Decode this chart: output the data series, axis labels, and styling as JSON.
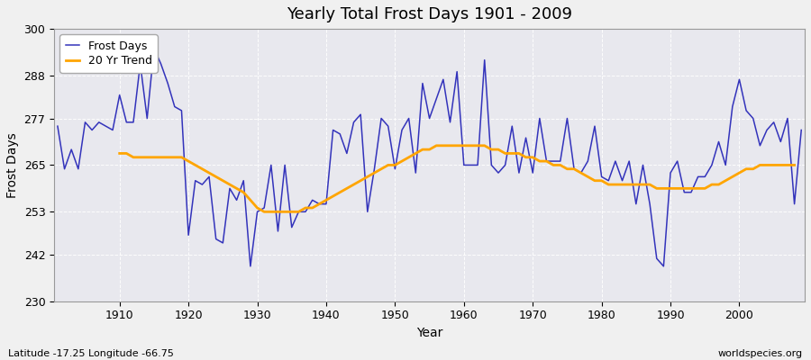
{
  "title": "Yearly Total Frost Days 1901 - 2009",
  "xlabel": "Year",
  "ylabel": "Frost Days",
  "footnote_left": "Latitude -17.25 Longitude -66.75",
  "footnote_right": "worldspecies.org",
  "legend_frost": "Frost Days",
  "legend_trend": "20 Yr Trend",
  "frost_color": "#3333bb",
  "trend_color": "#FFA500",
  "bg_color": "#f0f0f0",
  "plot_bg_color": "#e8e8ee",
  "ylim": [
    230,
    300
  ],
  "yticks": [
    230,
    242,
    253,
    265,
    277,
    288,
    300
  ],
  "years": [
    1901,
    1902,
    1903,
    1904,
    1905,
    1906,
    1907,
    1908,
    1909,
    1910,
    1911,
    1912,
    1913,
    1914,
    1915,
    1916,
    1917,
    1918,
    1919,
    1920,
    1921,
    1922,
    1923,
    1924,
    1925,
    1926,
    1927,
    1928,
    1929,
    1930,
    1931,
    1932,
    1933,
    1934,
    1935,
    1936,
    1937,
    1938,
    1939,
    1940,
    1941,
    1942,
    1943,
    1944,
    1945,
    1946,
    1947,
    1948,
    1949,
    1950,
    1951,
    1952,
    1953,
    1954,
    1955,
    1956,
    1957,
    1958,
    1959,
    1960,
    1961,
    1962,
    1963,
    1964,
    1965,
    1966,
    1967,
    1968,
    1969,
    1970,
    1971,
    1972,
    1973,
    1974,
    1975,
    1976,
    1977,
    1978,
    1979,
    1980,
    1981,
    1982,
    1983,
    1984,
    1985,
    1986,
    1987,
    1988,
    1989,
    1990,
    1991,
    1992,
    1993,
    1994,
    1995,
    1996,
    1997,
    1998,
    1999,
    2000,
    2001,
    2002,
    2003,
    2004,
    2005,
    2006,
    2007,
    2008,
    2009
  ],
  "frost_days": [
    275,
    264,
    269,
    264,
    276,
    274,
    276,
    275,
    274,
    283,
    276,
    276,
    291,
    277,
    295,
    291,
    286,
    280,
    279,
    247,
    261,
    260,
    262,
    246,
    245,
    259,
    256,
    261,
    239,
    253,
    254,
    265,
    248,
    265,
    249,
    253,
    253,
    256,
    255,
    255,
    274,
    273,
    268,
    276,
    278,
    253,
    264,
    277,
    275,
    264,
    274,
    277,
    263,
    286,
    277,
    282,
    287,
    276,
    289,
    265,
    265,
    265,
    292,
    265,
    263,
    265,
    275,
    263,
    272,
    263,
    277,
    266,
    266,
    266,
    277,
    264,
    263,
    266,
    275,
    262,
    261,
    266,
    261,
    266,
    255,
    265,
    255,
    241,
    239,
    263,
    266,
    258,
    258,
    262,
    262,
    265,
    271,
    265,
    280,
    287,
    279,
    277,
    270,
    274,
    276,
    271,
    277,
    255,
    274
  ],
  "trend_years": [
    1910,
    1911,
    1912,
    1913,
    1914,
    1915,
    1916,
    1917,
    1918,
    1919,
    1920,
    1921,
    1922,
    1923,
    1924,
    1925,
    1926,
    1927,
    1928,
    1929,
    1930,
    1931,
    1932,
    1933,
    1934,
    1935,
    1936,
    1937,
    1938,
    1939,
    1940,
    1941,
    1942,
    1943,
    1944,
    1945,
    1946,
    1947,
    1948,
    1949,
    1950,
    1951,
    1952,
    1953,
    1954,
    1955,
    1956,
    1957,
    1958,
    1959,
    1960,
    1961,
    1962,
    1963,
    1964,
    1965,
    1966,
    1967,
    1968,
    1969,
    1970,
    1971,
    1972,
    1973,
    1974,
    1975,
    1976,
    1977,
    1978,
    1979,
    1980,
    1981,
    1982,
    1983,
    1984,
    1985,
    1986,
    1987,
    1988,
    1989,
    1990,
    1991,
    1992,
    1993,
    1994,
    1995,
    1996,
    1997,
    1998,
    1999,
    2000,
    2001,
    2002,
    2003,
    2004,
    2005,
    2006,
    2007,
    2008
  ],
  "trend_vals": [
    268,
    268,
    267,
    267,
    267,
    267,
    267,
    267,
    267,
    267,
    266,
    265,
    264,
    263,
    262,
    261,
    260,
    259,
    258,
    256,
    254,
    253,
    253,
    253,
    253,
    253,
    253,
    254,
    254,
    255,
    256,
    257,
    258,
    259,
    260,
    261,
    262,
    263,
    264,
    265,
    265,
    266,
    267,
    268,
    269,
    269,
    270,
    270,
    270,
    270,
    270,
    270,
    270,
    270,
    269,
    269,
    268,
    268,
    268,
    267,
    267,
    266,
    266,
    265,
    265,
    264,
    264,
    263,
    262,
    261,
    261,
    260,
    260,
    260,
    260,
    260,
    260,
    260,
    259,
    259,
    259,
    259,
    259,
    259,
    259,
    259,
    260,
    260,
    261,
    262,
    263,
    264,
    264,
    265,
    265,
    265,
    265,
    265,
    265
  ]
}
